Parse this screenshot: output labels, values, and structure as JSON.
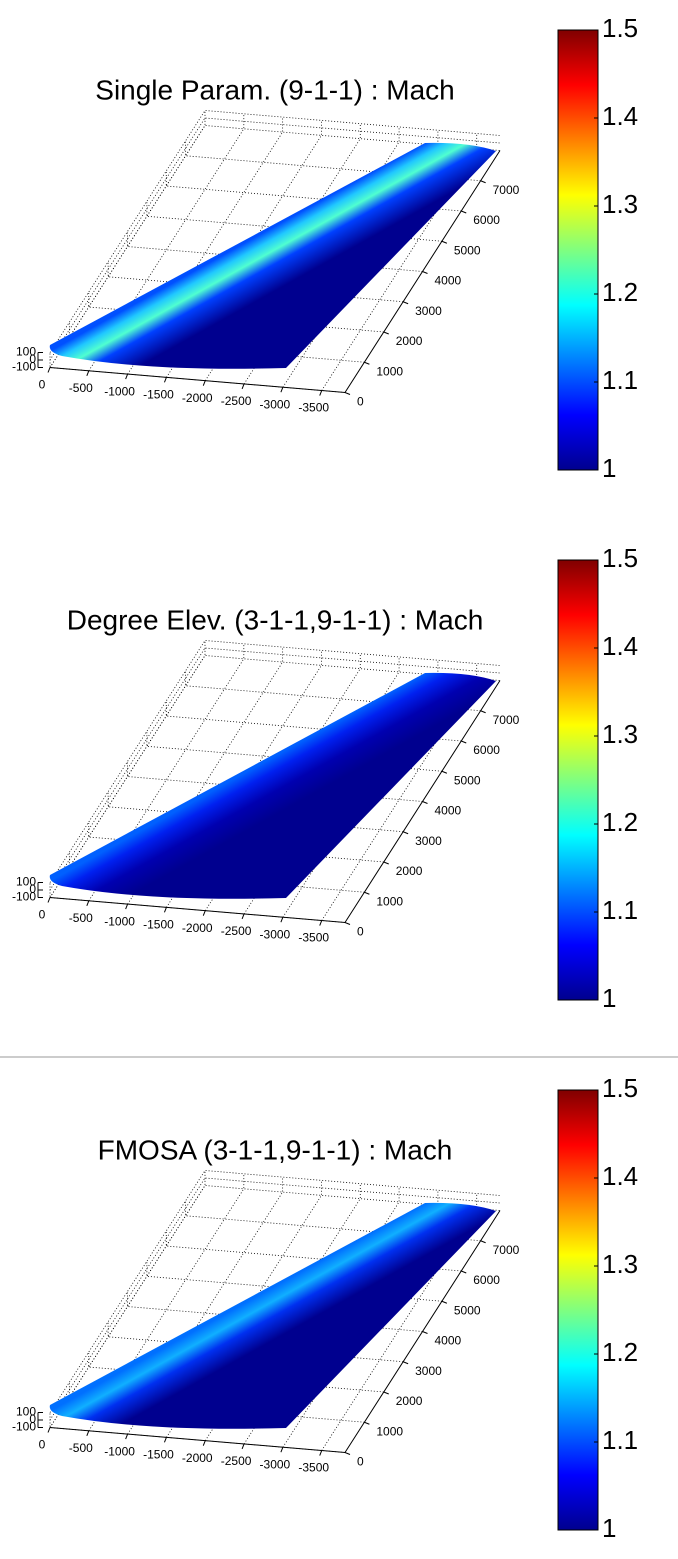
{
  "chart_data": [
    {
      "type": "surface",
      "title": "Single Param. (9-1-1) : Mach",
      "xlim": [
        0,
        -3800
      ],
      "xticks": [
        0,
        -500,
        -1000,
        -1500,
        -2000,
        -2500,
        -3000,
        -3500
      ],
      "ylim": [
        0,
        8000
      ],
      "yticks": [
        0,
        1000,
        2000,
        3000,
        4000,
        5000,
        6000,
        7000
      ],
      "zlim": [
        -100,
        100
      ],
      "zticks": [
        -100,
        0,
        100
      ],
      "clim": [
        1,
        1.5
      ],
      "cticks": [
        1,
        1.1,
        1.2,
        1.3,
        1.4,
        1.5
      ],
      "colormap": "jet",
      "grid": true
    },
    {
      "type": "surface",
      "title": "Degree Elev. (3-1-1,9-1-1) : Mach",
      "xlim": [
        0,
        -3800
      ],
      "xticks": [
        0,
        -500,
        -1000,
        -1500,
        -2000,
        -2500,
        -3000,
        -3500
      ],
      "ylim": [
        0,
        8000
      ],
      "yticks": [
        0,
        1000,
        2000,
        3000,
        4000,
        5000,
        6000,
        7000
      ],
      "zlim": [
        -100,
        100
      ],
      "zticks": [
        -100,
        0,
        100
      ],
      "clim": [
        1,
        1.5
      ],
      "cticks": [
        1,
        1.1,
        1.2,
        1.3,
        1.4,
        1.5
      ],
      "colormap": "jet",
      "grid": true
    },
    {
      "type": "surface",
      "title": "FMOSA (3-1-1,9-1-1) : Mach",
      "xlim": [
        0,
        -3800
      ],
      "xticks": [
        0,
        -500,
        -1000,
        -1500,
        -2000,
        -2500,
        -3000,
        -3500
      ],
      "ylim": [
        0,
        8000
      ],
      "yticks": [
        0,
        1000,
        2000,
        3000,
        4000,
        5000,
        6000,
        7000
      ],
      "zlim": [
        -100,
        100
      ],
      "zticks": [
        -100,
        0,
        100
      ],
      "clim": [
        1,
        1.5
      ],
      "cticks": [
        1,
        1.1,
        1.2,
        1.3,
        1.4,
        1.5
      ],
      "colormap": "jet",
      "grid": true
    }
  ]
}
